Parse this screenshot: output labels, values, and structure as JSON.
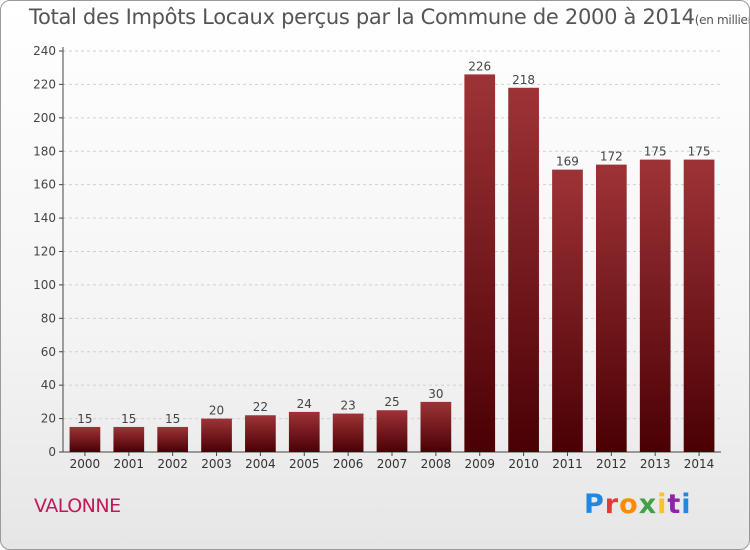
{
  "header": {
    "title": "Total des Impôts Locaux perçus par la Commune de 2000 à 2014",
    "unit": "(en milliers d'€)"
  },
  "footer": {
    "commune": "VALONNE",
    "logo": {
      "text": "Proxiti",
      "colors": [
        "#1e88e5",
        "#e53935",
        "#fb8c00",
        "#43a047",
        "#fbc02d",
        "#8e24aa",
        "#1e88e5"
      ]
    }
  },
  "chart_data": {
    "type": "bar",
    "title": "Total des Impôts Locaux perçus par la Commune de 2000 à 2014",
    "xlabel": "",
    "ylabel": "",
    "categories": [
      "2000",
      "2001",
      "2002",
      "2003",
      "2004",
      "2005",
      "2006",
      "2007",
      "2008",
      "2009",
      "2010",
      "2011",
      "2012",
      "2013",
      "2014"
    ],
    "values": [
      15,
      15,
      15,
      20,
      22,
      24,
      23,
      25,
      30,
      226,
      218,
      169,
      172,
      175,
      175
    ],
    "ylim": [
      0,
      240
    ],
    "yticks": [
      0,
      20,
      40,
      60,
      80,
      100,
      120,
      140,
      160,
      180,
      200,
      220,
      240
    ],
    "grid": true,
    "bar_color": "#6e0f12",
    "bar_color_light": "#a63a3e"
  }
}
